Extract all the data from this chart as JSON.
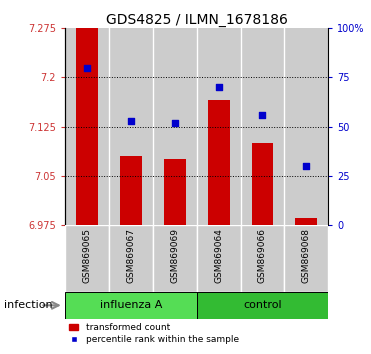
{
  "title": "GDS4825 / ILMN_1678186",
  "categories": [
    "GSM869065",
    "GSM869067",
    "GSM869069",
    "GSM869064",
    "GSM869066",
    "GSM869068"
  ],
  "bar_values": [
    7.275,
    7.08,
    7.075,
    7.165,
    7.1,
    6.985
  ],
  "percentile_values": [
    80,
    53,
    52,
    70,
    56,
    30
  ],
  "ylim_left": [
    6.975,
    7.275
  ],
  "ylim_right": [
    0,
    100
  ],
  "yticks_left": [
    6.975,
    7.05,
    7.125,
    7.2,
    7.275
  ],
  "ytick_labels_left": [
    "6.975",
    "7.05",
    "7.125",
    "7.2",
    "7.275"
  ],
  "yticks_right": [
    0,
    25,
    50,
    75,
    100
  ],
  "ytick_labels_right": [
    "0",
    "25",
    "50",
    "75",
    "100%"
  ],
  "bar_color": "#cc0000",
  "scatter_color": "#0000cc",
  "bar_width": 0.5,
  "groups": [
    {
      "label": "influenza A",
      "indices": [
        0,
        1,
        2
      ],
      "light_color": "#ccffcc",
      "dark_color": "#55dd55"
    },
    {
      "label": "control",
      "indices": [
        3,
        4,
        5
      ],
      "light_color": "#55dd55",
      "dark_color": "#33bb33"
    }
  ],
  "group_label": "infection",
  "legend_bar_label": "transformed count",
  "legend_scatter_label": "percentile rank within the sample",
  "background_color": "#ffffff",
  "col_bg_color": "#cccccc",
  "grid_color": "#000000",
  "title_fontsize": 10,
  "tick_label_color_left": "#cc3333",
  "tick_label_color_right": "#0000cc",
  "grid_dotted_ticks": [
    7.05,
    7.125,
    7.2
  ]
}
